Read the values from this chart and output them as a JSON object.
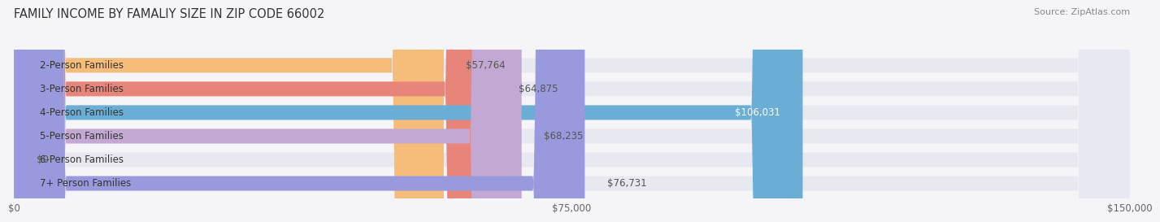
{
  "title": "FAMILY INCOME BY FAMALIY SIZE IN ZIP CODE 66002",
  "source": "Source: ZipAtlas.com",
  "categories": [
    "2-Person Families",
    "3-Person Families",
    "4-Person Families",
    "5-Person Families",
    "6-Person Families",
    "7+ Person Families"
  ],
  "values": [
    57764,
    64875,
    106031,
    68235,
    0,
    76731
  ],
  "bar_colors": [
    "#f5bc7a",
    "#e8857a",
    "#6aaed6",
    "#c4a8d4",
    "#6dcdc8",
    "#9999dd"
  ],
  "bar_bg_color": "#e8e8f0",
  "value_labels": [
    "$57,764",
    "$64,875",
    "$106,031",
    "$68,235",
    "$0",
    "$76,731"
  ],
  "label_inside": [
    false,
    false,
    true,
    false,
    false,
    false
  ],
  "x_max": 150000,
  "x_ticks": [
    0,
    75000,
    150000
  ],
  "x_tick_labels": [
    "$0",
    "$75,000",
    "$150,000"
  ],
  "title_fontsize": 10.5,
  "source_fontsize": 8,
  "bar_label_fontsize": 8.5,
  "category_fontsize": 8.5,
  "tick_fontsize": 8.5,
  "bar_height": 0.62,
  "background_color": "#f5f5f8"
}
